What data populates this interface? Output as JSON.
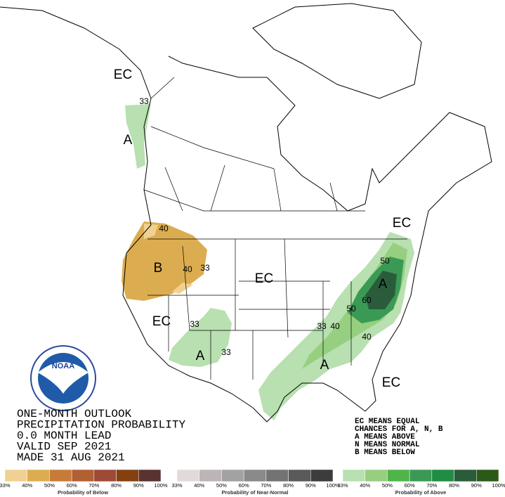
{
  "map": {
    "labels": [
      "EC",
      "33",
      "A",
      "40",
      "B",
      "40",
      "33",
      "EC",
      "EC",
      "33",
      "A",
      "33",
      "EC",
      "50",
      "A",
      "60",
      "50",
      "40",
      "33",
      "A",
      "40",
      "EC"
    ]
  },
  "outlook": {
    "lines": [
      "ONE-MONTH OUTLOOK",
      "PRECIPITATION PROBABILITY",
      "0.0 MONTH LEAD",
      "VALID SEP 2021",
      "MADE 31 AUG 2021"
    ]
  },
  "key": [
    "EC MEANS EQUAL",
    "CHANCES FOR A, N, B",
    "A MEANS ABOVE",
    "N MEANS NORMAL",
    "B MEANS BELOW"
  ],
  "logo": "NOAA",
  "legend": [
    {
      "title": "Probability of Below",
      "colors": [
        "#f0d191",
        "#dcad50",
        "#c67c38",
        "#b25f34",
        "#9d4a37",
        "#85400f",
        "#5a3232"
      ],
      "labels": [
        "33%",
        "40%",
        "50%",
        "60%",
        "70%",
        "80%",
        "90%",
        "100%"
      ]
    },
    {
      "title": "Probability of Near-Normal",
      "colors": [
        "#e2dada",
        "#bdb5b5",
        "#a2a2a2",
        "#8a8a8a",
        "#737373",
        "#5a5a5a",
        "#3c3c3c"
      ],
      "labels": [
        "33%",
        "40%",
        "50%",
        "60%",
        "70%",
        "80%",
        "90%",
        "100%"
      ]
    },
    {
      "title": "Probability of Above",
      "colors": [
        "#b8e0b0",
        "#96cf80",
        "#4fb548",
        "#3a9a55",
        "#1f8d42",
        "#2a5c3b",
        "#2b5a18"
      ],
      "labels": [
        "33%",
        "40%",
        "50%",
        "60%",
        "70%",
        "80%",
        "90%",
        "100%"
      ]
    }
  ]
}
